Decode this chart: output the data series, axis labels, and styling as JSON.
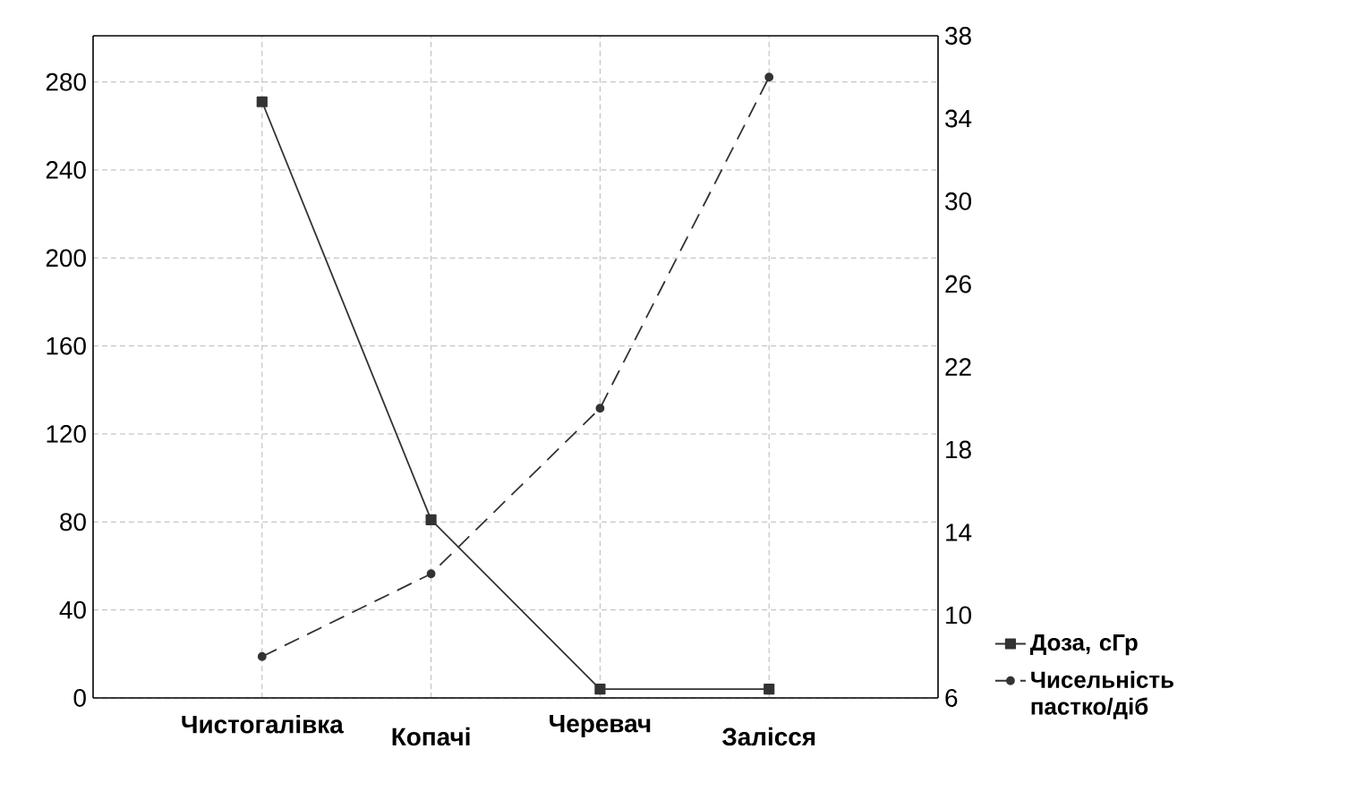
{
  "chart_data": {
    "type": "line",
    "categories": [
      "Чистогалівка",
      "Копачі",
      "Черевач",
      "Залісся"
    ],
    "series": [
      {
        "name": "Доза, сГр",
        "color": "#333333",
        "values": [
          271,
          81,
          4,
          4
        ],
        "marker": "square",
        "line_style": "solid"
      },
      {
        "name": "Чисельність пастко/діб",
        "color": "#333333",
        "values": [
          8,
          12,
          20,
          36
        ],
        "marker": "circle",
        "line_style": "dashed",
        "axis": "y2"
      }
    ],
    "ylim": [
      0,
      301
    ],
    "yticks": [
      0,
      40,
      80,
      120,
      160,
      200,
      240,
      280
    ],
    "y2lim": [
      6,
      38
    ],
    "y2ticks": [
      6,
      10,
      14,
      18,
      22,
      26,
      30,
      34,
      38
    ],
    "grid": true,
    "legend": "right"
  }
}
